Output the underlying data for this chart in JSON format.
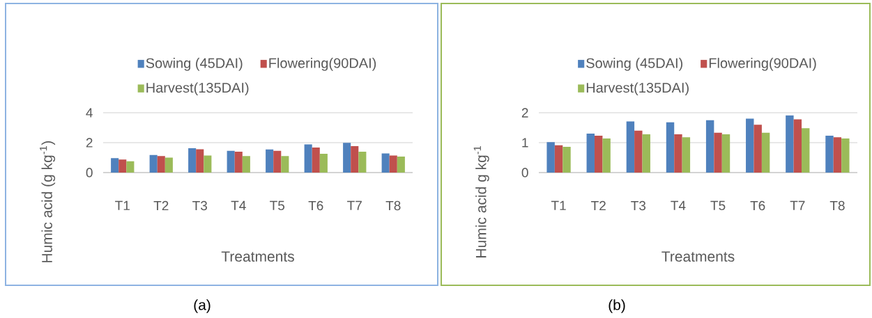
{
  "chart_data": [
    {
      "type": "bar",
      "xlabel": "Treatments",
      "ylabel": "Humic acid (g kg$^{-1}$)",
      "categories": [
        "T1",
        "T2",
        "T3",
        "T4",
        "T5",
        "T6",
        "T7",
        "T8"
      ],
      "series": [
        {
          "name": "Sowing (45DAI)",
          "color": "#4f81bd",
          "values": [
            0.96,
            1.17,
            1.63,
            1.45,
            1.55,
            1.88,
            1.99,
            1.28
          ]
        },
        {
          "name": "Flowering(90DAI)",
          "color": "#c0504d",
          "values": [
            0.87,
            1.1,
            1.56,
            1.39,
            1.45,
            1.67,
            1.77,
            1.14
          ]
        },
        {
          "name": "Harvest(135DAI)",
          "color": "#9bbb59",
          "values": [
            0.76,
            1.0,
            1.14,
            1.1,
            1.1,
            1.26,
            1.39,
            1.07
          ]
        }
      ],
      "ylim": [
        0,
        4
      ],
      "yticks": [
        0,
        2,
        4
      ],
      "grid": "y",
      "legend": "top",
      "annotations": [
        "(a)"
      ]
    },
    {
      "type": "bar",
      "xlabel": "Treatments",
      "ylabel": "Humic acid g kg$^{-1}$",
      "categories": [
        "T1",
        "T2",
        "T3",
        "T4",
        "T5",
        "T6",
        "T7",
        "T8"
      ],
      "series": [
        {
          "name": "Sowing (45DAI)",
          "color": "#4f81bd",
          "values": [
            1.02,
            1.3,
            1.71,
            1.68,
            1.75,
            1.8,
            1.91,
            1.23
          ]
        },
        {
          "name": "Flowering(90DAI)",
          "color": "#c0504d",
          "values": [
            0.91,
            1.23,
            1.4,
            1.28,
            1.33,
            1.6,
            1.78,
            1.18
          ]
        },
        {
          "name": "Harvest(135DAI)",
          "color": "#9bbb59",
          "values": [
            0.86,
            1.14,
            1.28,
            1.18,
            1.28,
            1.33,
            1.48,
            1.14
          ]
        }
      ],
      "ylim": [
        0,
        2
      ],
      "yticks": [
        0,
        1,
        2
      ],
      "grid": "y",
      "legend": "top",
      "annotations": [
        "(b)"
      ]
    }
  ]
}
